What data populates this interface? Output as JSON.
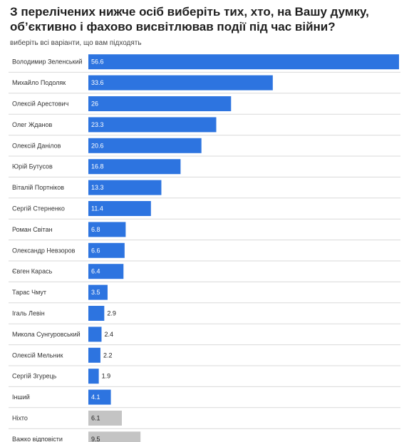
{
  "title": "З перелічених нижче осіб виберіть тих, хто, на Вашу думку, об’єктивно і фахово висвітлював події під час війни?",
  "subtitle": "виберіть всі варіанти, що вам підходять",
  "colors": {
    "primary": "#2d74e0",
    "neutral": "#c4c4c4",
    "grid": "#d9d9d9"
  },
  "chart_data": {
    "type": "bar",
    "orientation": "horizontal",
    "title": "З перелічених нижче осіб виберіть тих, хто, на Вашу думку, об’єктивно і фахово висвітлював події під час війни?",
    "subtitle": "виберіть всі варіанти, що вам підходять",
    "categories": [
      "Володимир Зеленський",
      "Михайло Подоляк",
      "Олексій Арестович",
      "Олег Жданов",
      "Олексій Данілов",
      "Юрій Бутусов",
      "Віталій Портніков",
      "Сергій Стерненко",
      "Роман Світан",
      "Олександр Невзоров",
      "Євген Карась",
      "Тарас Чмут",
      "Ігаль Левін",
      "Микола Сунгуровський",
      "Олексій Мельник",
      "Сергій Згурець",
      "Інший",
      "Ніхто",
      "Важко відповісти"
    ],
    "values": [
      56.6,
      33.6,
      26,
      23.3,
      20.6,
      16.8,
      13.3,
      11.4,
      6.8,
      6.6,
      6.4,
      3.5,
      2.9,
      2.4,
      2.2,
      1.9,
      4.1,
      6.1,
      9.5
    ],
    "labels": [
      "56.6",
      "33.6",
      "26",
      "23.3",
      "20.6",
      "16.8",
      "13.3",
      "11.4",
      "6.8",
      "6.6",
      "6.4",
      "3.5",
      "2.9",
      "2.4",
      "2.2",
      "1.9",
      "4.1",
      "6.1",
      "9.5"
    ],
    "bar_colors": [
      "primary",
      "primary",
      "primary",
      "primary",
      "primary",
      "primary",
      "primary",
      "primary",
      "primary",
      "primary",
      "primary",
      "primary",
      "primary",
      "primary",
      "primary",
      "primary",
      "primary",
      "neutral",
      "neutral"
    ],
    "xlim": [
      0,
      56.6
    ],
    "grid": "horizontal separators",
    "legend": "none"
  }
}
